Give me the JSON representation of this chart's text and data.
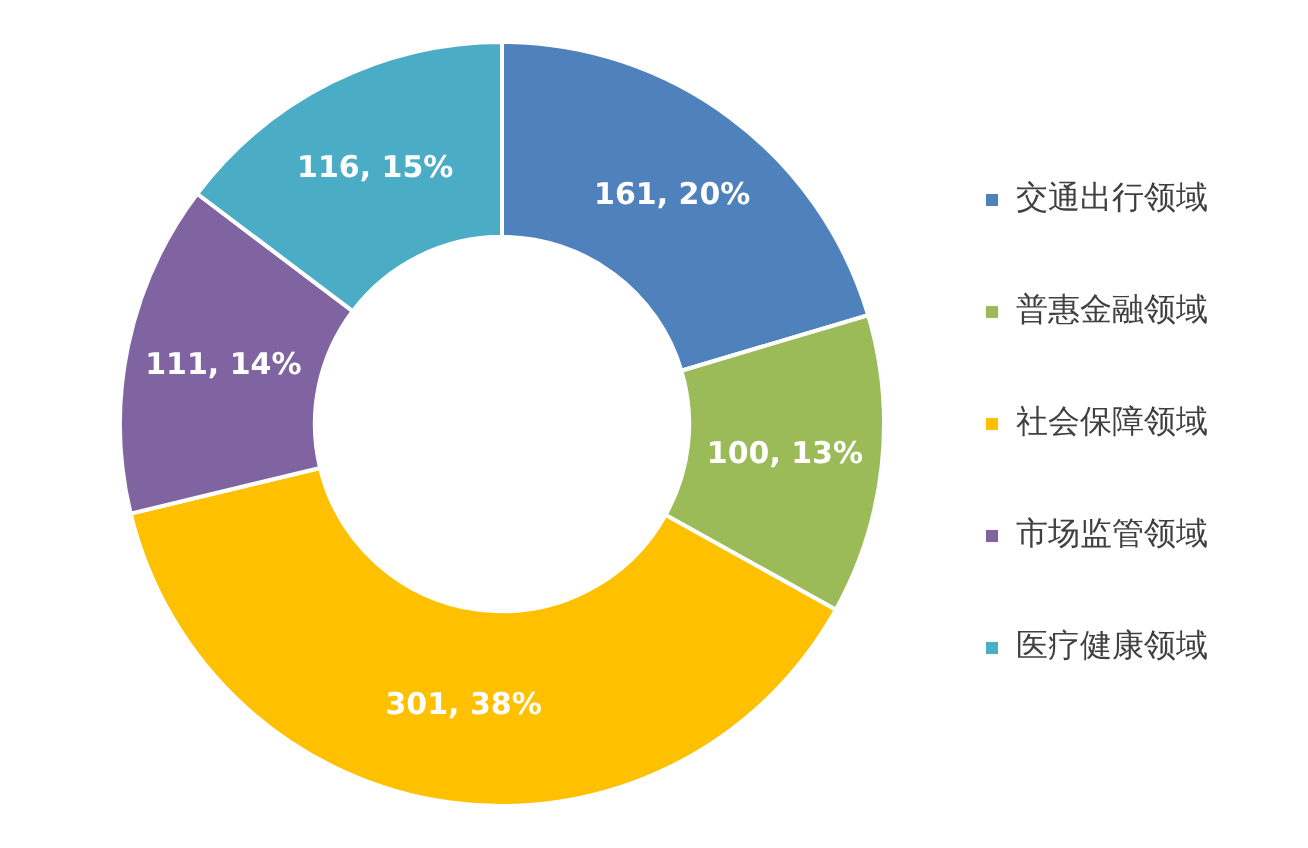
{
  "chart_data": {
    "type": "donut",
    "categories": [
      "交通出行领域",
      "普惠金融领域",
      "社会保障领域",
      "市场监管领域",
      "医疗健康领域"
    ],
    "values": [
      161,
      100,
      301,
      111,
      116
    ],
    "colors": [
      "#4f81bd",
      "#9bbb59",
      "#ffc000",
      "#8064a2",
      "#4bacc6"
    ],
    "value_labels": [
      "161, 20%",
      "100, 13%",
      "301, 38%",
      "111, 14%",
      "116, 15%"
    ],
    "legend": "right"
  }
}
